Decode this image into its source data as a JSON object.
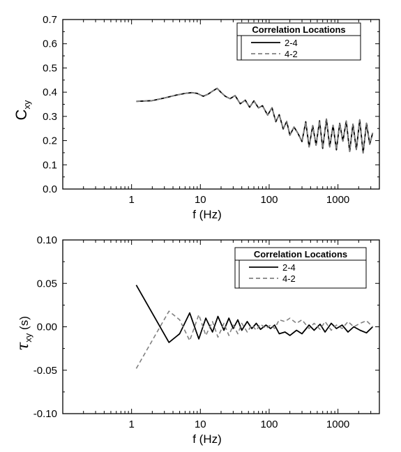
{
  "chart_data": [
    {
      "type": "line",
      "ylabel_main": "C",
      "ylabel_sub": "xy",
      "xlabel": "f (Hz)",
      "xscale": "log",
      "xlim": [
        0.1,
        4000
      ],
      "ylim": [
        0.0,
        0.7
      ],
      "xticks": [
        1,
        10,
        100,
        1000
      ],
      "xtick_labels": [
        "1",
        "10",
        "100",
        "1000"
      ],
      "yticks": [
        0.0,
        0.1,
        0.2,
        0.3,
        0.4,
        0.5,
        0.6,
        0.7
      ],
      "ytick_labels": [
        "0.0",
        "0.1",
        "0.2",
        "0.3",
        "0.4",
        "0.5",
        "0.6",
        "0.7"
      ],
      "legend": {
        "title": "Correlation Locations",
        "position": "top-right"
      },
      "series": [
        {
          "name": "2-4",
          "color": "#000000",
          "dash": "solid",
          "x": [
            1.17,
            2.0,
            3.0,
            4.5,
            6.0,
            7.5,
            9.0,
            11.0,
            13.0,
            15.0,
            17.5,
            20.0,
            23.0,
            27.0,
            32.0,
            38.0,
            45.0,
            52.0,
            60.0,
            70.0,
            80.0,
            95.0,
            110.0,
            125.0,
            140.0,
            160.0,
            180.0,
            200.0,
            230.0,
            260.0,
            300.0,
            340.0,
            380.0,
            430.0,
            480.0,
            540.0,
            600.0,
            680.0,
            760.0,
            850.0,
            950.0,
            1060.0,
            1180.0,
            1320.0,
            1480.0,
            1650.0,
            1850.0,
            2070.0,
            2320.0,
            2600.0,
            2900.0,
            3200.0
          ],
          "y": [
            0.362,
            0.365,
            0.376,
            0.388,
            0.395,
            0.398,
            0.395,
            0.383,
            0.392,
            0.404,
            0.416,
            0.399,
            0.383,
            0.373,
            0.386,
            0.352,
            0.367,
            0.338,
            0.364,
            0.335,
            0.344,
            0.305,
            0.336,
            0.278,
            0.307,
            0.248,
            0.279,
            0.222,
            0.256,
            0.232,
            0.196,
            0.278,
            0.174,
            0.262,
            0.181,
            0.282,
            0.168,
            0.289,
            0.174,
            0.263,
            0.162,
            0.271,
            0.198,
            0.281,
            0.155,
            0.268,
            0.163,
            0.286,
            0.149,
            0.272,
            0.185,
            0.232
          ]
        },
        {
          "name": "4-2",
          "color": "#808080",
          "dash": "dashed",
          "x": [
            1.17,
            2.0,
            3.0,
            4.5,
            6.0,
            7.5,
            9.0,
            11.0,
            13.0,
            15.0,
            17.5,
            20.0,
            23.0,
            27.0,
            32.0,
            38.0,
            45.0,
            52.0,
            60.0,
            70.0,
            80.0,
            95.0,
            110.0,
            125.0,
            140.0,
            160.0,
            180.0,
            200.0,
            230.0,
            260.0,
            300.0,
            340.0,
            380.0,
            430.0,
            480.0,
            540.0,
            600.0,
            680.0,
            760.0,
            850.0,
            950.0,
            1060.0,
            1180.0,
            1320.0,
            1480.0,
            1650.0,
            1850.0,
            2070.0,
            2320.0,
            2600.0,
            2900.0,
            3200.0
          ],
          "y": [
            0.362,
            0.365,
            0.376,
            0.388,
            0.395,
            0.398,
            0.395,
            0.383,
            0.392,
            0.404,
            0.416,
            0.399,
            0.383,
            0.373,
            0.386,
            0.352,
            0.367,
            0.338,
            0.364,
            0.335,
            0.344,
            0.305,
            0.336,
            0.278,
            0.307,
            0.248,
            0.279,
            0.222,
            0.256,
            0.232,
            0.196,
            0.278,
            0.174,
            0.262,
            0.181,
            0.282,
            0.168,
            0.289,
            0.174,
            0.263,
            0.162,
            0.271,
            0.198,
            0.281,
            0.155,
            0.268,
            0.163,
            0.286,
            0.149,
            0.272,
            0.185,
            0.232
          ]
        }
      ]
    },
    {
      "type": "line",
      "ylabel_main": "τ",
      "ylabel_sub": "xy",
      "ylabel_unit": "(s)",
      "xlabel": "f (Hz)",
      "xscale": "log",
      "xlim": [
        0.1,
        4000
      ],
      "ylim": [
        -0.1,
        0.1
      ],
      "xticks": [
        1,
        10,
        100,
        1000
      ],
      "xtick_labels": [
        "1",
        "10",
        "100",
        "1000"
      ],
      "yticks": [
        -0.1,
        -0.05,
        0.0,
        0.05,
        0.1
      ],
      "ytick_labels": [
        "-0.10",
        "-0.05",
        "0.00",
        "0.05",
        "0.10"
      ],
      "legend": {
        "title": "Correlation Locations",
        "position": "top-right"
      },
      "series": [
        {
          "name": "2-4",
          "color": "#000000",
          "dash": "solid",
          "x": [
            1.17,
            3.5,
            5.0,
            7.0,
            9.5,
            12.0,
            15.0,
            18.0,
            22.0,
            26.0,
            30.0,
            35.0,
            40.0,
            48.0,
            56.0,
            65.0,
            75.0,
            90.0,
            105.0,
            120.0,
            140.0,
            170.0,
            200.0,
            250.0,
            300.0,
            380.0,
            450.0,
            550.0,
            650.0,
            800.0,
            950.0,
            1150.0,
            1400.0,
            1700.0,
            2100.0,
            2600.0,
            3200.0
          ],
          "y": [
            0.048,
            -0.018,
            -0.008,
            0.016,
            -0.014,
            0.01,
            -0.006,
            0.012,
            -0.004,
            0.01,
            -0.002,
            0.008,
            -0.004,
            0.006,
            -0.002,
            0.004,
            -0.003,
            0.002,
            -0.002,
            0.002,
            -0.008,
            -0.006,
            -0.01,
            -0.004,
            -0.008,
            0.002,
            -0.004,
            0.003,
            -0.006,
            0.004,
            -0.002,
            0.002,
            -0.006,
            0.0,
            -0.004,
            -0.007,
            0.0
          ]
        },
        {
          "name": "4-2",
          "color": "#808080",
          "dash": "dashed",
          "x": [
            1.17,
            3.5,
            5.0,
            7.0,
            9.5,
            12.0,
            15.0,
            18.0,
            22.0,
            26.0,
            30.0,
            35.0,
            40.0,
            48.0,
            56.0,
            65.0,
            75.0,
            90.0,
            105.0,
            120.0,
            140.0,
            170.0,
            200.0,
            250.0,
            300.0,
            380.0,
            450.0,
            550.0,
            650.0,
            800.0,
            950.0,
            1150.0,
            1400.0,
            1700.0,
            2100.0,
            2600.0,
            3200.0
          ],
          "y": [
            -0.048,
            0.018,
            0.008,
            -0.016,
            0.014,
            -0.01,
            0.006,
            -0.012,
            0.004,
            -0.01,
            0.002,
            -0.008,
            0.004,
            -0.006,
            0.002,
            -0.004,
            0.003,
            -0.002,
            0.002,
            -0.002,
            0.008,
            0.006,
            0.01,
            0.004,
            0.008,
            -0.002,
            0.004,
            -0.003,
            0.006,
            -0.004,
            0.002,
            -0.002,
            0.006,
            0.0,
            0.004,
            0.007,
            0.0
          ]
        }
      ]
    }
  ]
}
